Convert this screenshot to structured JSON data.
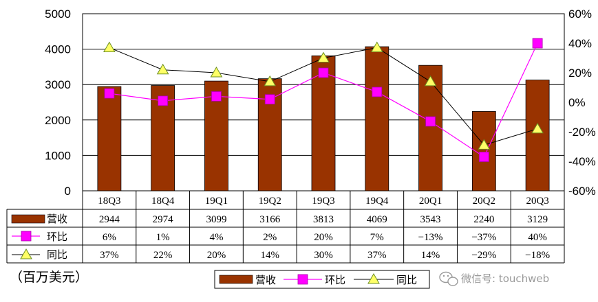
{
  "chart_data": {
    "type": "bar",
    "categories": [
      "18Q3",
      "18Q4",
      "19Q1",
      "19Q2",
      "19Q3",
      "19Q4",
      "20Q1",
      "20Q2",
      "20Q3"
    ],
    "series": [
      {
        "name": "营收",
        "chart_type": "bar",
        "axis": "left",
        "values": [
          2944,
          2974,
          3099,
          3166,
          3813,
          4069,
          3543,
          2240,
          3129
        ],
        "labels": [
          "2944",
          "2974",
          "3099",
          "3166",
          "3813",
          "4069",
          "3543",
          "2240",
          "3129"
        ],
        "color": "#993300"
      },
      {
        "name": "环比",
        "chart_type": "line",
        "axis": "right",
        "values": [
          6,
          1,
          4,
          2,
          20,
          7,
          -13,
          -37,
          40
        ],
        "labels": [
          "6%",
          "1%",
          "4%",
          "2%",
          "20%",
          "7%",
          "−13%",
          "−37%",
          "40%"
        ],
        "color": "#ff00ff"
      },
      {
        "name": "同比",
        "chart_type": "line",
        "axis": "right",
        "values": [
          37,
          22,
          20,
          14,
          30,
          37,
          14,
          -29,
          -18
        ],
        "labels": [
          "37%",
          "22%",
          "20%",
          "14%",
          "30%",
          "37%",
          "14%",
          "−29%",
          "−18%"
        ],
        "color": "#000000",
        "marker_color": "#ffff66"
      }
    ],
    "y_left": {
      "ylim": [
        0,
        5000
      ],
      "ticks": [
        0,
        1000,
        2000,
        3000,
        4000,
        5000
      ],
      "tick_labels": [
        "0",
        "1000",
        "2000",
        "3000",
        "4000",
        "5000"
      ]
    },
    "y_right": {
      "ylim": [
        -60,
        60
      ],
      "ticks": [
        -60,
        -40,
        -20,
        0,
        20,
        40,
        60
      ],
      "tick_labels": [
        "-60%",
        "-40%",
        "-20%",
        "0%",
        "20%",
        "40%",
        "60%"
      ]
    },
    "grid": true,
    "data_table": true,
    "legend": "bottom",
    "unit_note": "（百万美元）"
  },
  "watermark": "微信号: touchweb"
}
